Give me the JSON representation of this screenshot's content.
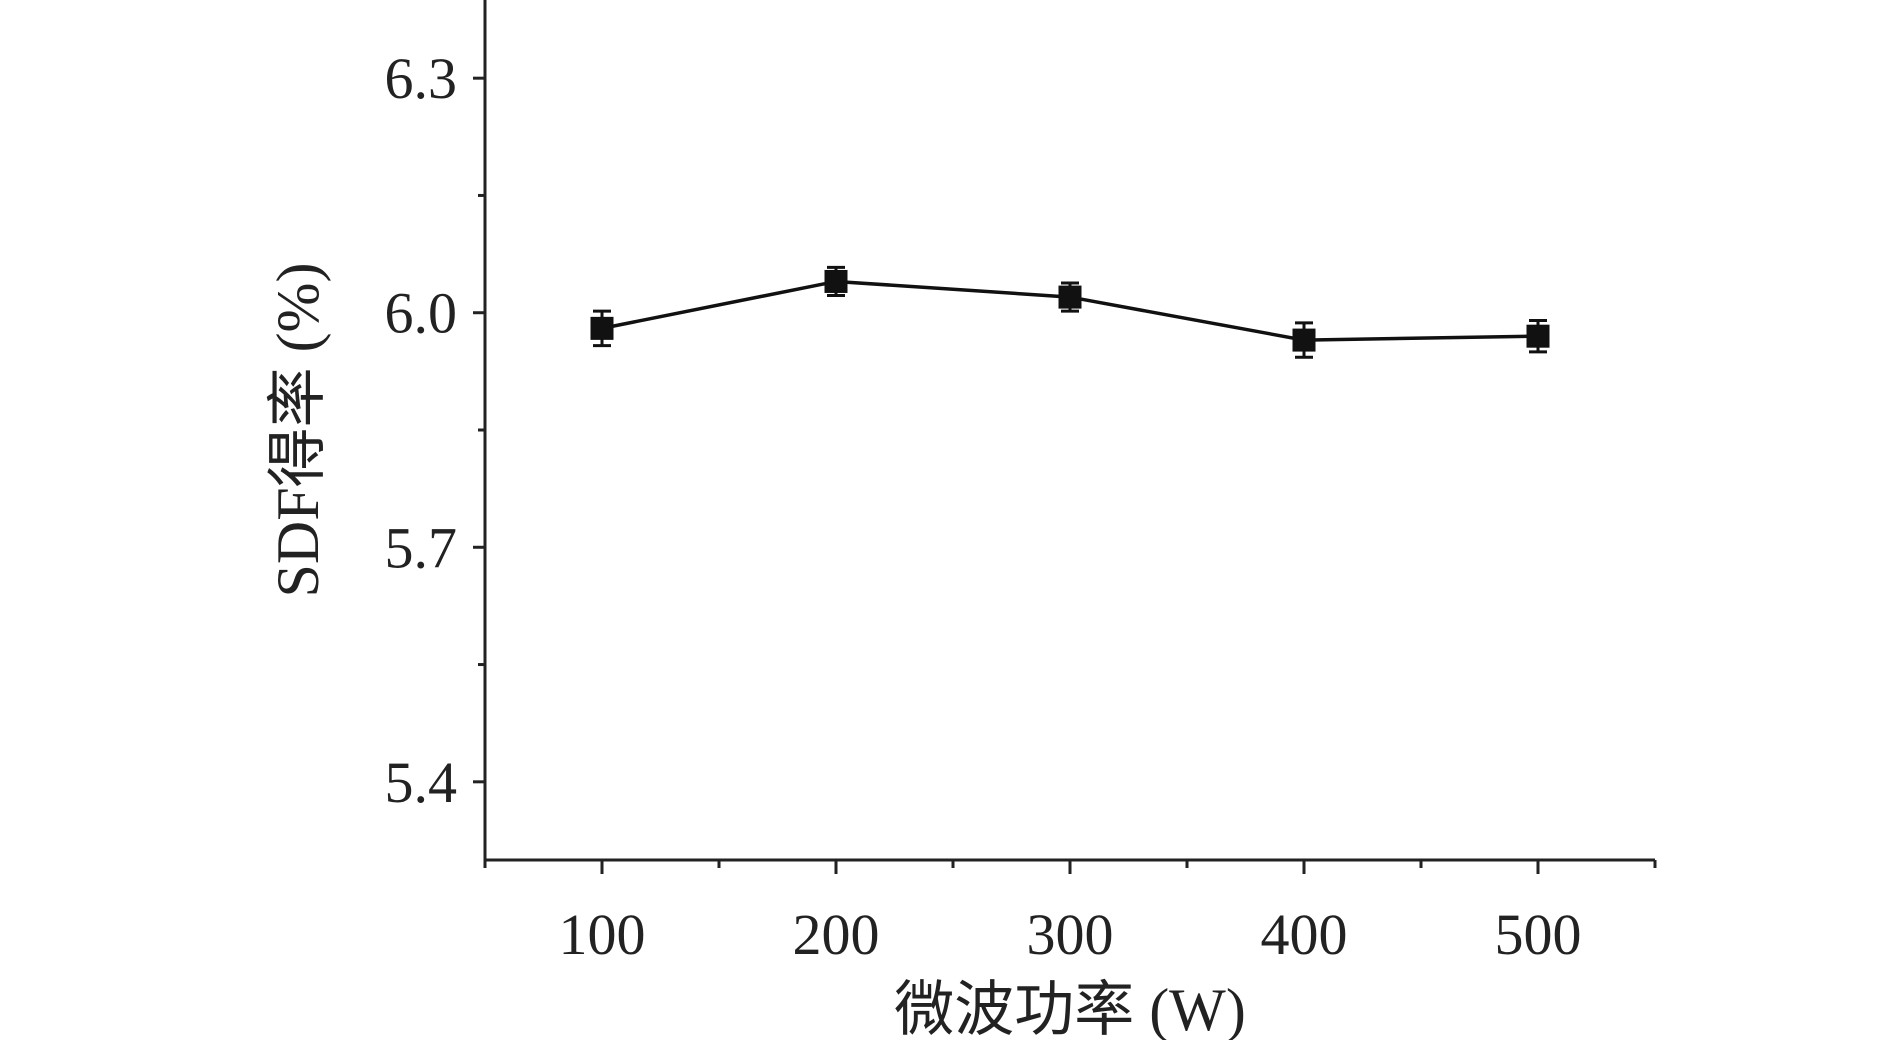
{
  "colors": {
    "axis": "#222222",
    "series": "#111111",
    "background": "#ffffff"
  },
  "chart_data": {
    "type": "line",
    "title": "",
    "xlabel": "微波功率 (W)",
    "ylabel": "SDF得率 (%)",
    "x": [
      100,
      200,
      300,
      400,
      500
    ],
    "xlim": [
      50,
      550
    ],
    "ylim": [
      5.3,
      6.4
    ],
    "x_major_ticks": [
      100,
      200,
      300,
      400,
      500
    ],
    "x_minor_ticks": [
      50,
      150,
      250,
      350,
      450,
      550
    ],
    "x_tick_labels": [
      "100",
      "200",
      "300",
      "400",
      "500"
    ],
    "y_major_ticks": [
      5.4,
      5.7,
      6.0,
      6.3
    ],
    "y_minor_ticks": [
      5.55,
      5.85,
      6.15
    ],
    "y_tick_labels": [
      "5.4",
      "5.7",
      "6.0",
      "6.3"
    ],
    "grid": false,
    "legend": "none",
    "marker": "square",
    "series": [
      {
        "values": [
          5.98,
          6.04,
          6.02,
          5.965,
          5.97
        ],
        "errors": [
          0.022,
          0.018,
          0.018,
          0.022,
          0.02
        ]
      }
    ]
  }
}
